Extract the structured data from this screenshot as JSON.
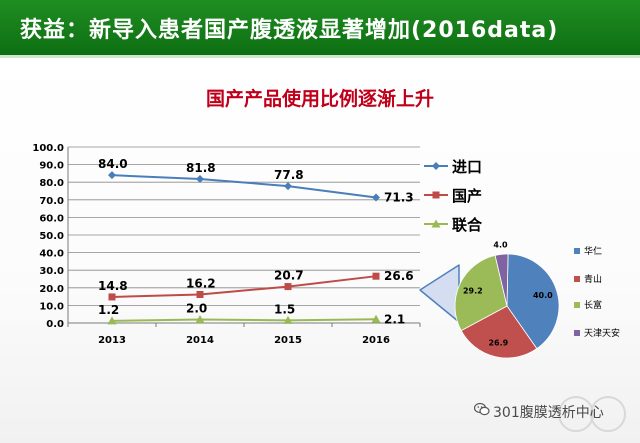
{
  "header": {
    "title": "获益：新导入患者国产腹透液显著增加(2016data)",
    "background_color": "#148018",
    "text_color": "#ffffff"
  },
  "watermark": {
    "text": "301腹膜透析中心",
    "icon": "wechat-icon"
  },
  "chart_data": [
    {
      "type": "line",
      "title": "国产产品使用比例逐渐上升",
      "xlabel": "",
      "ylabel": "",
      "categories": [
        "2013",
        "2014",
        "2015",
        "2016"
      ],
      "ylim": [
        0,
        100
      ],
      "y_ticks": [
        "0.0",
        "10.0",
        "20.0",
        "30.0",
        "40.0",
        "50.0",
        "60.0",
        "70.0",
        "80.0",
        "90.0",
        "100.0"
      ],
      "grid": true,
      "legend_position": "right",
      "series": [
        {
          "name": "进口",
          "values": [
            84.0,
            81.8,
            77.8,
            71.3
          ],
          "labels": [
            "84.0",
            "81.8",
            "77.8",
            "71.3"
          ],
          "color": "#4a7ebb",
          "marker": "diamond"
        },
        {
          "name": "国产",
          "values": [
            14.8,
            16.2,
            20.7,
            26.6
          ],
          "labels": [
            "14.8",
            "16.2",
            "20.7",
            "26.6"
          ],
          "color": "#be4b48",
          "marker": "square"
        },
        {
          "name": "联合",
          "values": [
            1.2,
            2.0,
            1.5,
            2.1
          ],
          "labels": [
            "1.2",
            "2.0",
            "1.5",
            "2.1"
          ],
          "color": "#98b954",
          "marker": "triangle"
        }
      ]
    },
    {
      "type": "pie",
      "title": "",
      "slices": [
        {
          "name": "华仁",
          "value": 40.0,
          "label": "40.0",
          "color": "#4f81bd"
        },
        {
          "name": "青山",
          "value": 26.9,
          "label": "26.9",
          "color": "#c0504d"
        },
        {
          "name": "长富",
          "value": 29.2,
          "label": "29.2",
          "color": "#9bbb59"
        },
        {
          "name": "天津天安",
          "value": 4.0,
          "label": "4.0",
          "color": "#8064a2"
        }
      ],
      "legend_position": "right"
    }
  ]
}
